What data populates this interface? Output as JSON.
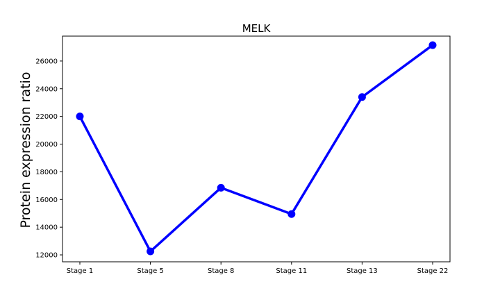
{
  "chart_data": {
    "type": "line",
    "title": "MELK",
    "xlabel": "",
    "ylabel": "Protein expression ratio",
    "categories": [
      "Stage 1",
      "Stage 5",
      "Stage 8",
      "Stage 11",
      "Stage 13",
      "Stage 22"
    ],
    "series": [
      {
        "values": [
          22000,
          12250,
          16850,
          14950,
          23400,
          27150
        ]
      }
    ],
    "yticks": [
      12000,
      14000,
      16000,
      18000,
      20000,
      22000,
      24000,
      26000
    ],
    "ytick_labels": [
      "12000",
      "14000",
      "16000",
      "18000",
      "20000",
      "22000",
      "24000",
      "26000"
    ],
    "ylim": [
      11500,
      27800
    ],
    "grid": false,
    "colors": {
      "line": "#0000ff",
      "marker": "#0000ff",
      "axes": "#000000"
    }
  }
}
